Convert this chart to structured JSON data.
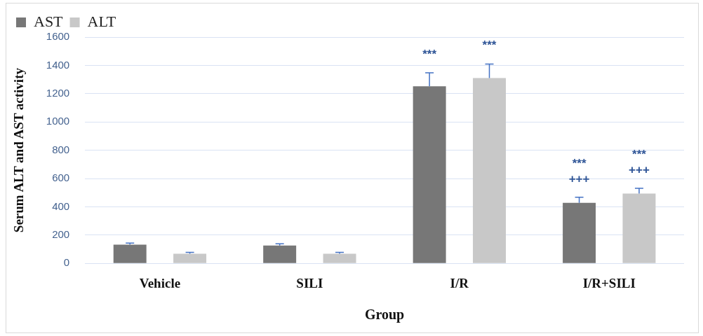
{
  "chart_data": {
    "type": "bar",
    "xlabel": "Group",
    "ylabel": "Serum ALT and AST activity",
    "categories": [
      "Vehicle",
      "SILI",
      "I/R",
      "I/R+SILI"
    ],
    "series": [
      {
        "name": "AST",
        "color": "#777777",
        "values": [
          132,
          126,
          1252,
          428
        ],
        "errors": [
          [
            132,
            143
          ],
          [
            126,
            138
          ],
          [
            1252,
            1348
          ],
          [
            428,
            467
          ]
        ]
      },
      {
        "name": "ALT",
        "color": "#c8c8c8",
        "values": [
          68,
          68,
          1310,
          493
        ],
        "errors": [
          [
            68,
            78
          ],
          [
            68,
            78
          ],
          [
            1310,
            1410
          ],
          [
            493,
            531
          ]
        ]
      }
    ],
    "ylim": [
      0,
      1600
    ],
    "yticks": [
      0,
      200,
      400,
      600,
      800,
      1000,
      1200,
      1400,
      1600
    ],
    "grid": "y",
    "legend": "top left",
    "annotations": [
      "***",
      "***",
      "+++",
      "***",
      "+++",
      "***"
    ]
  }
}
